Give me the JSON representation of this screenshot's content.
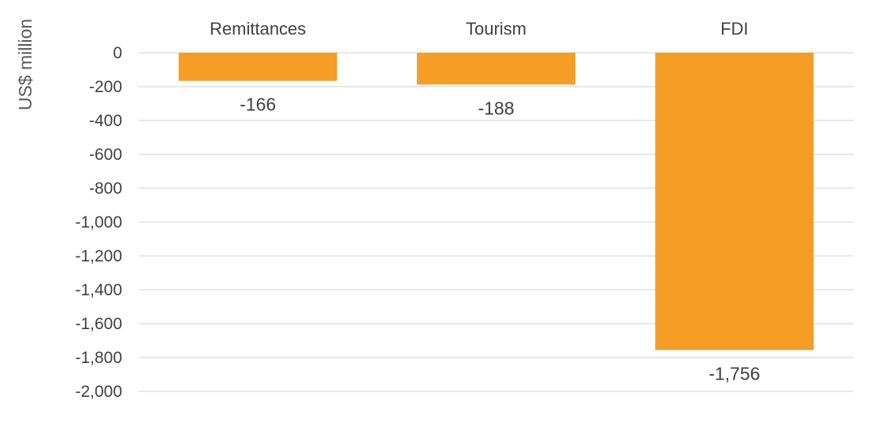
{
  "chart_data": {
    "type": "bar",
    "title": "",
    "xlabel": "",
    "ylabel": "US$ million",
    "categories": [
      "Remittances",
      "Tourism",
      "FDI"
    ],
    "values": [
      -166,
      -188,
      -1756
    ],
    "data_labels": [
      "-166",
      "-188",
      "-1,756"
    ],
    "ylim": [
      -2000,
      0
    ],
    "yticks": [
      0,
      -200,
      -400,
      -600,
      -800,
      -1000,
      -1200,
      -1400,
      -1600,
      -1800,
      -2000
    ],
    "ytick_labels": [
      "0",
      "-200",
      "-400",
      "-600",
      "-800",
      "-1,000",
      "-1,200",
      "-1,400",
      "-1,600",
      "-1,800",
      "-2,000"
    ],
    "category_label_position": "top",
    "grid": true,
    "legend": "none",
    "bar_color": "#F59D24",
    "grid_color": "#D9D9D9",
    "text_color": "#404040"
  }
}
